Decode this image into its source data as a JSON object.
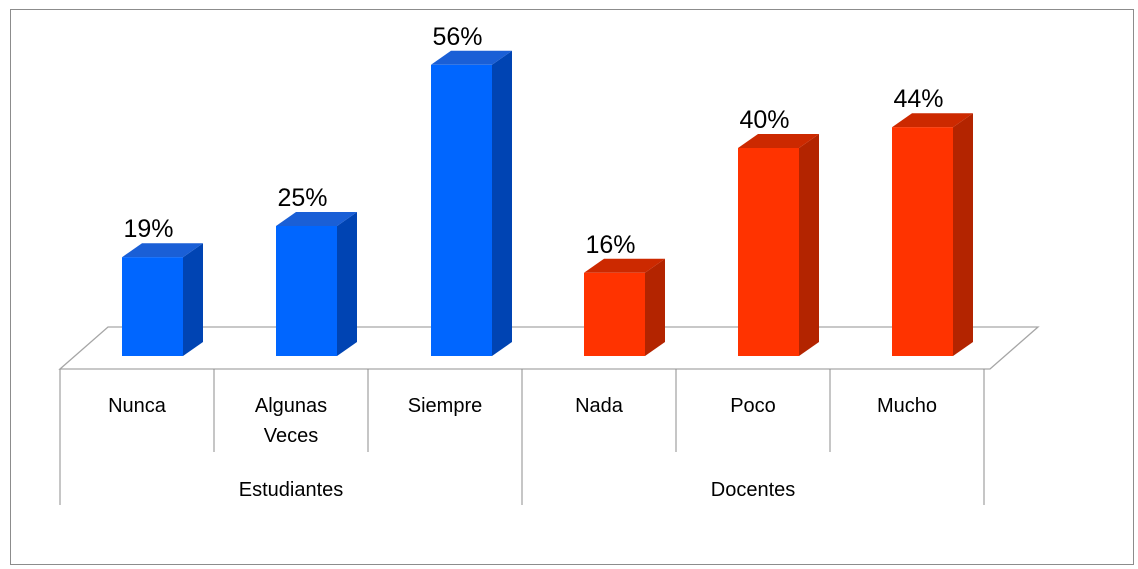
{
  "chart_data": {
    "type": "bar",
    "title": "",
    "xlabel": "",
    "ylabel": "",
    "ylim": [
      0,
      60
    ],
    "grid": false,
    "legend": "none",
    "style": "3d-column",
    "categories": [
      "Nunca",
      "Algunas Veces",
      "Siempre",
      "Nada",
      "Poco",
      "Mucho"
    ],
    "category_lines": [
      [
        "Nunca"
      ],
      [
        "Algunas",
        "Veces"
      ],
      [
        "Siempre"
      ],
      [
        "Nada"
      ],
      [
        "Poco"
      ],
      [
        "Mucho"
      ]
    ],
    "values": [
      19,
      25,
      56,
      16,
      40,
      44
    ],
    "data_labels": [
      "19%",
      "25%",
      "56%",
      "16%",
      "40%",
      "44%"
    ],
    "groups": [
      {
        "label": "Estudiantes",
        "start": 0,
        "end": 2,
        "color": "#0066ff"
      },
      {
        "label": "Docentes",
        "start": 3,
        "end": 5,
        "color": "#ff3300"
      }
    ],
    "colors": {
      "blue_front": "#0066ff",
      "blue_side": "#0044b3",
      "blue_top": "#1a5fd6",
      "red_front": "#ff3300",
      "red_side": "#b32400",
      "red_top": "#cc2900",
      "floor_line": "#a6a6a6",
      "axis_line": "#8c8c8c"
    }
  }
}
